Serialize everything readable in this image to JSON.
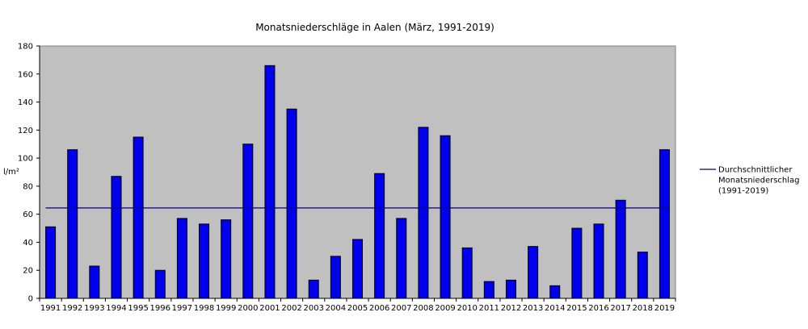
{
  "chart_data": {
    "type": "bar",
    "title": "Monatsniederschläge in Aalen (März, 1991-2019)",
    "ylabel": "l/m²",
    "xlabel": "",
    "ylim": [
      0,
      180
    ],
    "y_ticks": [
      0,
      20,
      40,
      60,
      80,
      100,
      120,
      140,
      160,
      180
    ],
    "grid": false,
    "background": "#c0c0c0",
    "bar_color": "#0000ee",
    "line_color": "#000080",
    "categories": [
      "1991",
      "1992",
      "1993",
      "1994",
      "1995",
      "1996",
      "1997",
      "1998",
      "1999",
      "2000",
      "2001",
      "2002",
      "2003",
      "2004",
      "2005",
      "2006",
      "2007",
      "2008",
      "2009",
      "2010",
      "2011",
      "2012",
      "2013",
      "2014",
      "2015",
      "2016",
      "2017",
      "2018",
      "2019"
    ],
    "values": [
      51,
      106,
      23,
      87,
      115,
      20,
      57,
      53,
      56,
      110,
      166,
      135,
      13,
      30,
      42,
      89,
      57,
      122,
      116,
      36,
      12,
      13,
      37,
      9,
      50,
      53,
      70,
      33,
      106
    ],
    "reference_line": {
      "value": 64.5,
      "label_lines": [
        "Durchschnittlicher",
        "Monatsniederschlag",
        "(1991-2019)"
      ]
    },
    "legend_position": "right"
  }
}
